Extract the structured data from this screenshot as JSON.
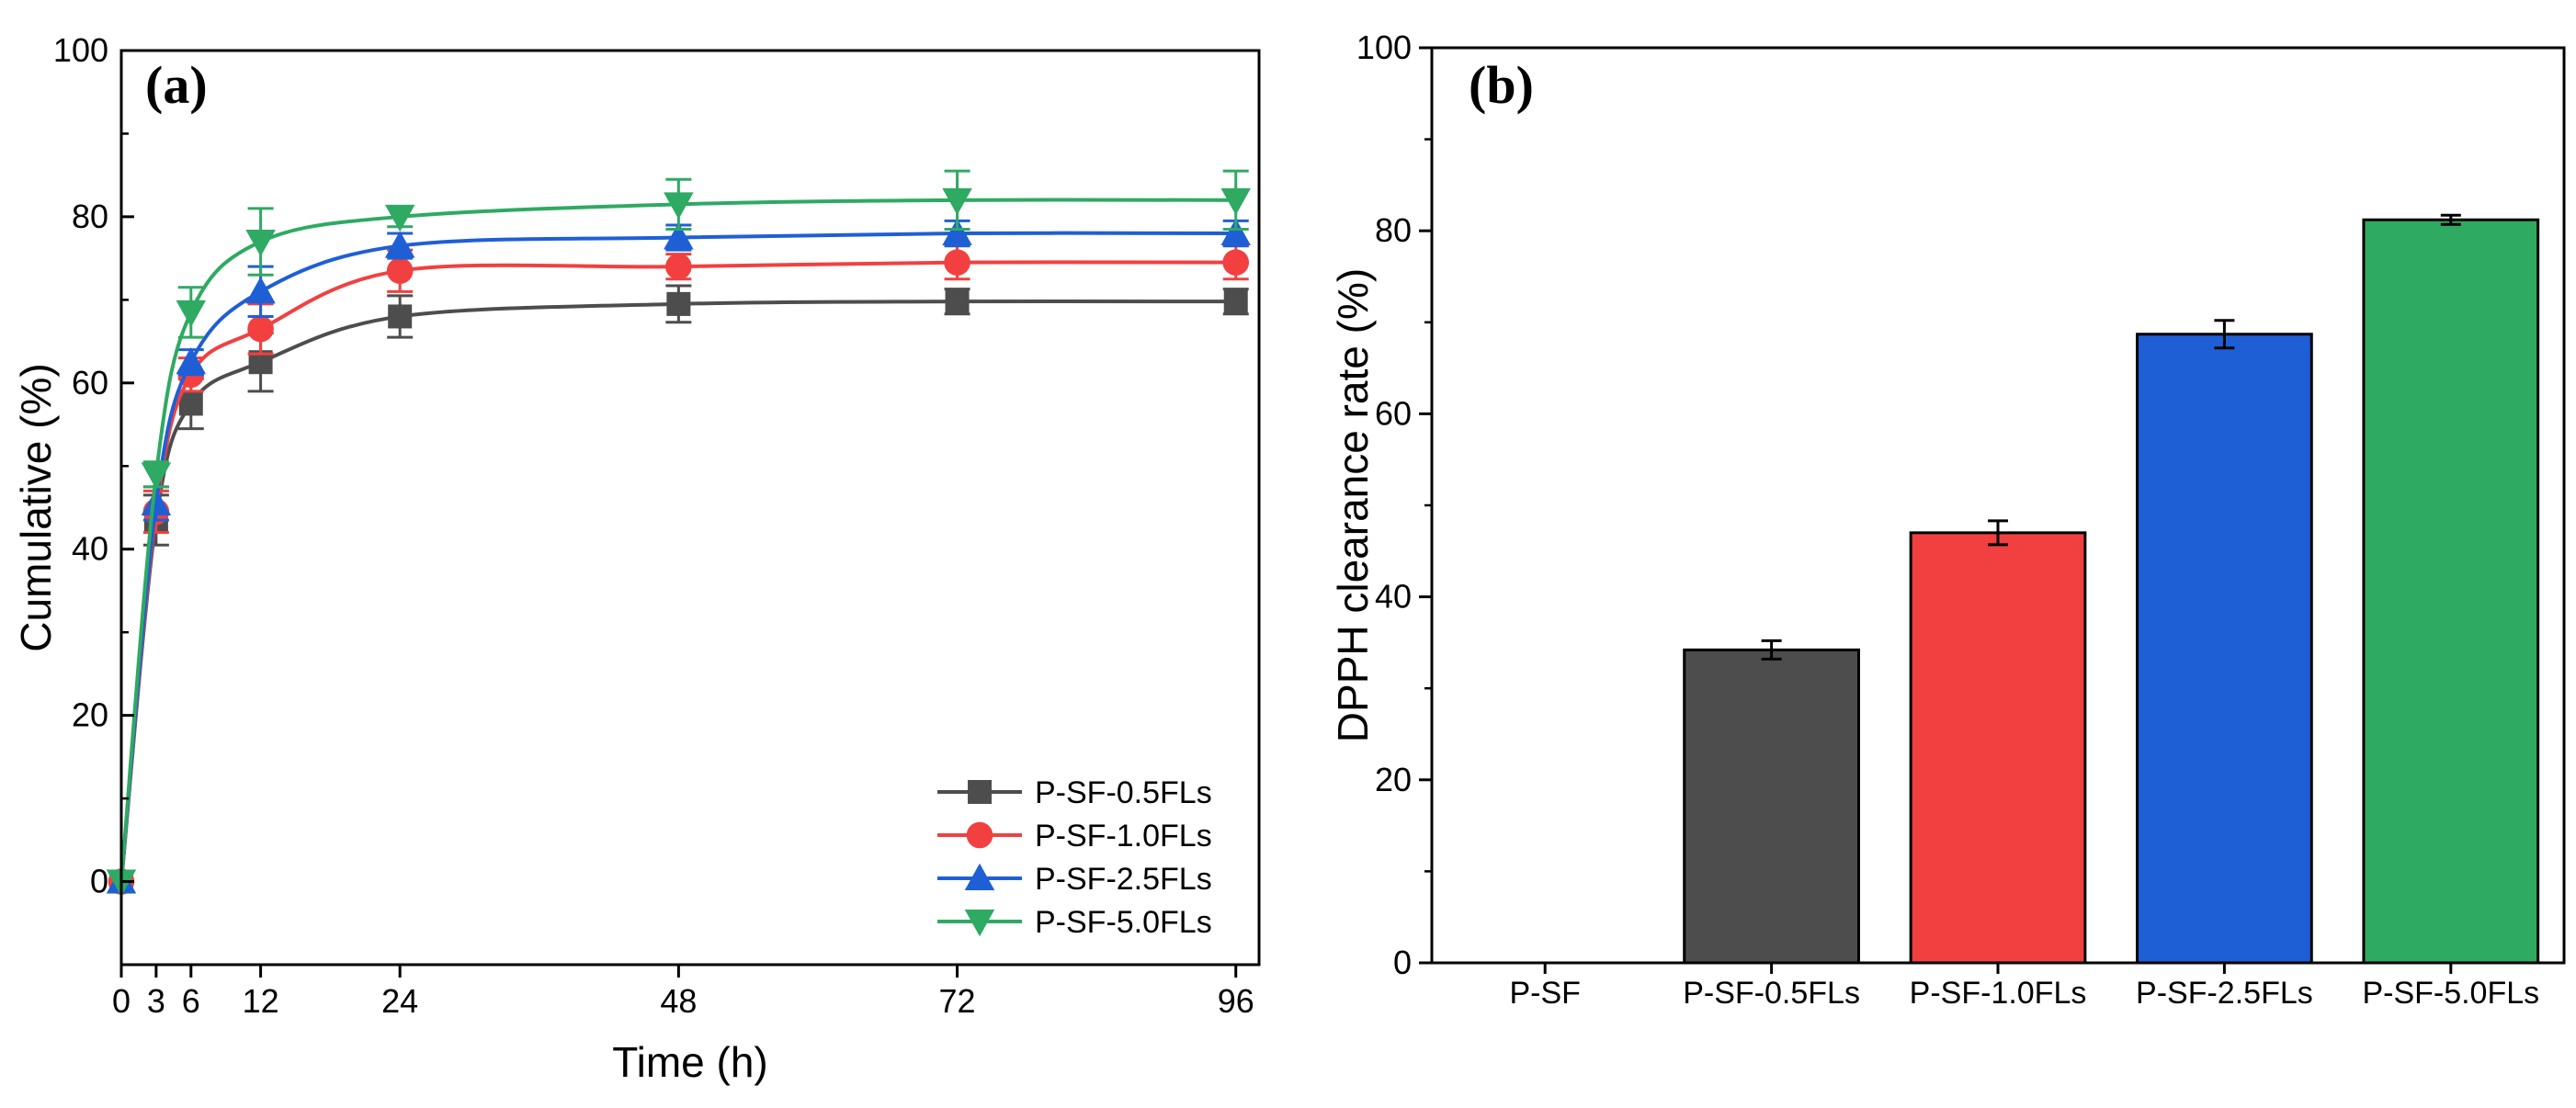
{
  "chart_data": [
    {
      "type": "line",
      "panel_label": "(a)",
      "xlabel": "Time (h)",
      "ylabel": "Cumulative (%)",
      "xlim": [
        0,
        98
      ],
      "ylim": [
        -10,
        100
      ],
      "x_ticks": [
        0,
        3,
        6,
        12,
        24,
        48,
        72,
        96
      ],
      "y_ticks": [
        0,
        20,
        40,
        60,
        80,
        100
      ],
      "x": [
        0,
        3,
        6,
        12,
        24,
        48,
        72,
        96
      ],
      "legend_position": "bottom-right",
      "series": [
        {
          "name": "P-SF-0.5FLs",
          "color": "#4d4d4d",
          "marker": "square",
          "values": [
            0,
            43.5,
            57.5,
            62.5,
            68,
            69.5,
            69.8,
            69.8
          ],
          "errors": [
            0,
            3,
            3,
            3.5,
            2.5,
            2.2,
            1.5,
            1.5
          ]
        },
        {
          "name": "P-SF-1.0FLs",
          "color": "#f24040",
          "marker": "circle",
          "values": [
            0,
            44.5,
            61,
            66.5,
            73.5,
            74,
            74.5,
            74.5
          ],
          "errors": [
            0,
            2.5,
            2,
            3,
            2.5,
            1.5,
            2,
            2
          ]
        },
        {
          "name": "P-SF-2.5FLs",
          "color": "#1f5fd6",
          "marker": "triangle-up",
          "values": [
            0,
            45.5,
            62.5,
            71,
            76.5,
            77.5,
            78,
            78
          ],
          "errors": [
            0,
            2,
            1.5,
            3,
            1.5,
            1.5,
            1.5,
            1.5
          ]
        },
        {
          "name": "P-SF-5.0FLs",
          "color": "#2eaa62",
          "marker": "triangle-down",
          "values": [
            0,
            49,
            68.5,
            77,
            80,
            81.5,
            82,
            82
          ],
          "errors": [
            0,
            1.5,
            3,
            4,
            1.2,
            3,
            3.5,
            3.5
          ]
        }
      ]
    },
    {
      "type": "bar",
      "panel_label": "(b)",
      "xlabel": "",
      "ylabel": "DPPH clearance rate (%)",
      "ylim": [
        0,
        100
      ],
      "y_ticks": [
        0,
        20,
        40,
        60,
        80,
        100
      ],
      "categories": [
        "P-SF",
        "P-SF-0.5FLs",
        "P-SF-1.0FLs",
        "P-SF-2.5FLs",
        "P-SF-5.0FLs"
      ],
      "values": [
        0,
        34.2,
        47,
        68.7,
        81.2
      ],
      "errors": [
        0,
        1,
        1.3,
        1.5,
        0.5
      ],
      "colors": [
        "#4d4d4d",
        "#4d4d4d",
        "#f24040",
        "#1f5fd6",
        "#2eaa62"
      ]
    }
  ]
}
